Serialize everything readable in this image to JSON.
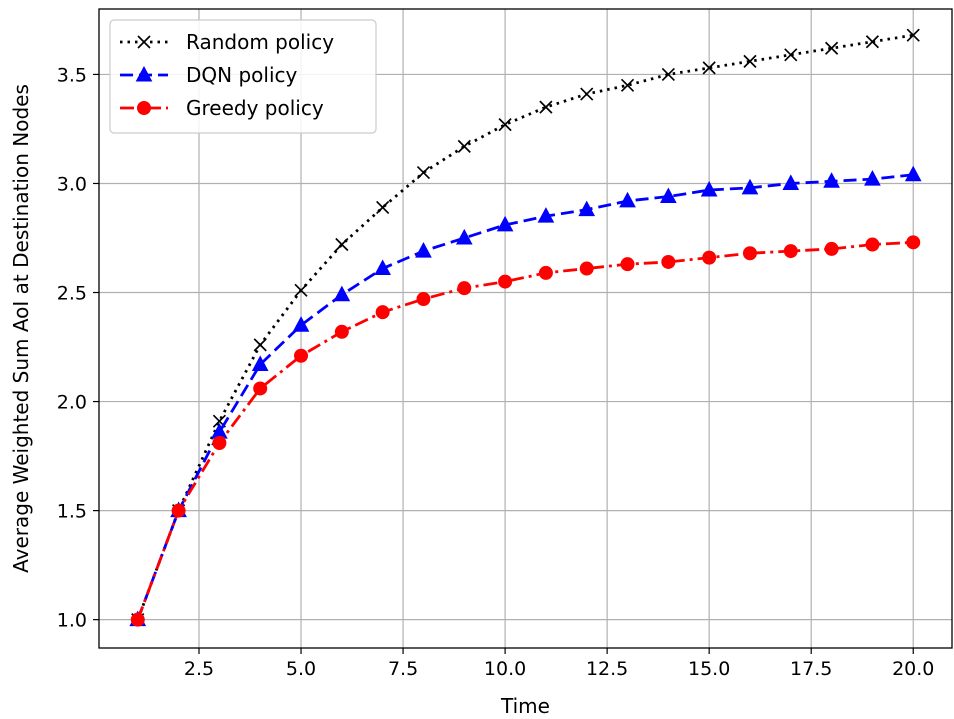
{
  "chart_data": {
    "type": "line",
    "title": "",
    "xlabel": "Time",
    "ylabel": "Average Weighted Sum AoI at Destination Nodes",
    "xlim": [
      0.05,
      20.95
    ],
    "ylim": [
      0.87,
      3.8
    ],
    "xticks": [
      2.5,
      5.0,
      7.5,
      10.0,
      12.5,
      15.0,
      17.5,
      20.0
    ],
    "xtick_labels": [
      "2.5",
      "5.0",
      "7.5",
      "10.0",
      "12.5",
      "15.0",
      "17.5",
      "20.0"
    ],
    "yticks": [
      1.0,
      1.5,
      2.0,
      2.5,
      3.0,
      3.5
    ],
    "ytick_labels": [
      "1.0",
      "1.5",
      "2.0",
      "2.5",
      "3.0",
      "3.5"
    ],
    "grid": true,
    "legend_position": "upper-left",
    "x": [
      1,
      2,
      3,
      4,
      5,
      6,
      7,
      8,
      9,
      10,
      11,
      12,
      13,
      14,
      15,
      16,
      17,
      18,
      19,
      20
    ],
    "series": [
      {
        "name": "Random policy",
        "color": "#000000",
        "line_style": "dotted",
        "marker": "x",
        "values": [
          1.0,
          1.5,
          1.91,
          2.26,
          2.51,
          2.72,
          2.89,
          3.05,
          3.17,
          3.27,
          3.35,
          3.41,
          3.45,
          3.5,
          3.53,
          3.56,
          3.59,
          3.62,
          3.65,
          3.68
        ]
      },
      {
        "name": "DQN policy",
        "color": "#0000ff",
        "line_style": "dashed",
        "marker": "triangle",
        "values": [
          1.0,
          1.5,
          1.86,
          2.17,
          2.35,
          2.49,
          2.61,
          2.69,
          2.75,
          2.81,
          2.85,
          2.88,
          2.92,
          2.94,
          2.97,
          2.98,
          3.0,
          3.01,
          3.02,
          3.04
        ]
      },
      {
        "name": "Greedy policy",
        "color": "#ff0000",
        "line_style": "dashdot",
        "marker": "circle",
        "values": [
          1.0,
          1.5,
          1.81,
          2.06,
          2.21,
          2.32,
          2.41,
          2.47,
          2.52,
          2.55,
          2.59,
          2.61,
          2.63,
          2.64,
          2.66,
          2.68,
          2.69,
          2.7,
          2.72,
          2.73
        ]
      }
    ]
  }
}
